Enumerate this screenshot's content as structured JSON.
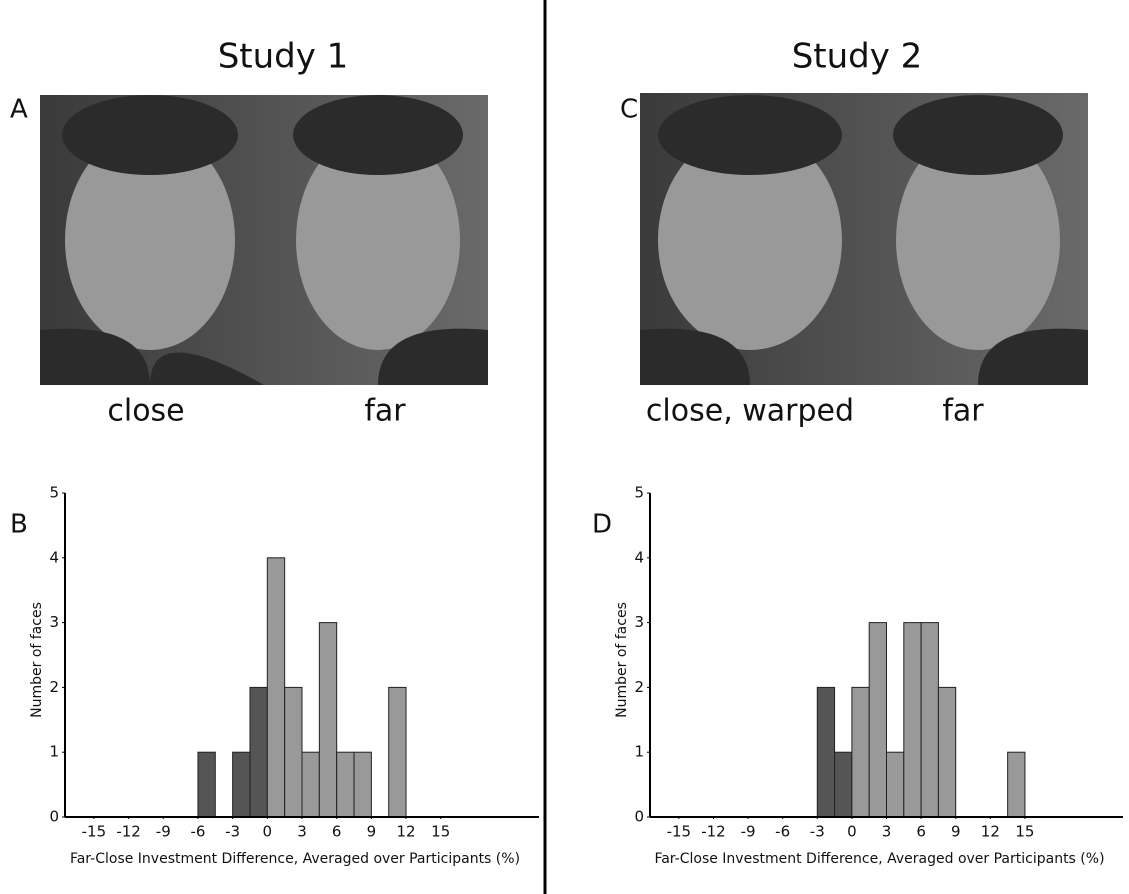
{
  "panels": [
    {
      "title": "Study 1",
      "photo_label": "A",
      "captions": [
        "close",
        "far"
      ]
    },
    {
      "title": "Study 2",
      "photo_label": "C",
      "captions": [
        "close, warped",
        "far"
      ]
    }
  ],
  "chart_data": [
    {
      "type": "histogram",
      "panel_label": "B",
      "bins": [
        -6,
        -4.5,
        -3,
        -1.5,
        0,
        1.5,
        3,
        4.5,
        6,
        7.5,
        9,
        10.5,
        12
      ],
      "values": [
        1,
        0,
        1,
        2,
        4,
        2,
        1,
        3,
        1,
        1,
        0,
        2
      ],
      "negative_color": "#555555",
      "positive_color": "#999999",
      "xlabel": "Far-Close Investment Difference, Averaged over Participants (%)",
      "ylabel": "Number of faces",
      "xlim": [
        -17.5,
        23.5
      ],
      "xticks": [
        -15,
        -12,
        -9,
        -6,
        -3,
        0,
        3,
        6,
        9,
        12,
        15
      ],
      "ylim": [
        0,
        5
      ],
      "yticks": [
        0,
        1,
        2,
        3,
        4,
        5
      ]
    },
    {
      "type": "histogram",
      "panel_label": "D",
      "bins": [
        -3,
        -1.5,
        0,
        1.5,
        3,
        4.5,
        6,
        7.5,
        9,
        10.5,
        12,
        13.5,
        15
      ],
      "values": [
        2,
        1,
        2,
        3,
        1,
        3,
        3,
        2,
        0,
        0,
        0,
        1
      ],
      "negative_color": "#555555",
      "positive_color": "#999999",
      "xlabel": "Far-Close Investment Difference, Averaged over Participants (%)",
      "ylabel": "Number of faces",
      "xlim": [
        -17.5,
        23.5
      ],
      "xticks": [
        -15,
        -12,
        -9,
        -6,
        -3,
        0,
        3,
        6,
        9,
        12,
        15
      ],
      "ylim": [
        0,
        5
      ],
      "yticks": [
        0,
        1,
        2,
        3,
        4,
        5
      ]
    }
  ]
}
